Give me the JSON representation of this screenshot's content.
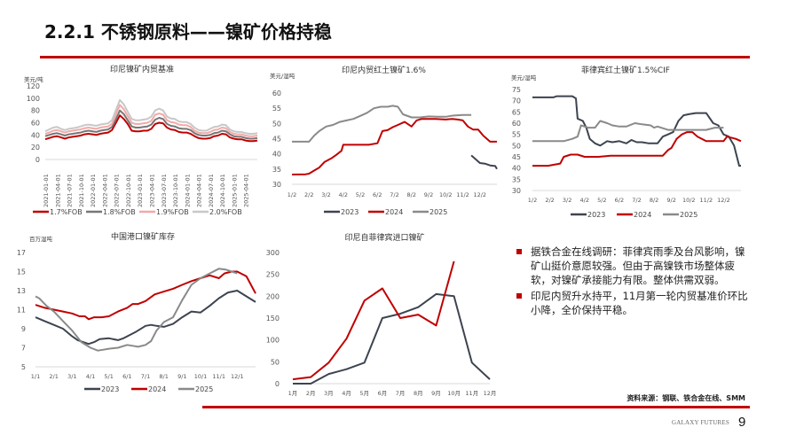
{
  "page": {
    "title": "2.2.1 不锈钢原料——镍矿价格持稳",
    "source": "资料来源：钢联、铁合金在线、SMM",
    "brand": "GALAXY FUTURES",
    "page_number": "9",
    "accent_color": "#c00000"
  },
  "bullets": [
    "据铁合金在线调研：菲律宾雨季及台风影响，镍矿山挺价意愿较强。但由于高镍铁市场整体疲软，对镍矿承接能力有限。整体供需双弱。",
    "印尼内贸升水持平，11月第一轮内贸基准价环比小降，全价保持平稳。"
  ],
  "chart_data": [
    {
      "id": "c1",
      "type": "line",
      "title": "印尼镍矿内贸基准",
      "ylabel": "美元/吨",
      "ylim": [
        0,
        120
      ],
      "yticks": [
        0,
        20,
        40,
        60,
        80,
        100,
        120
      ],
      "xticks": [
        "2021-01-01",
        "2021-04-01",
        "2021-07-01",
        "2021-10-01",
        "2022-01-01",
        "2022-04-01",
        "2022-07-01",
        "2022-10-01",
        "2023-01-01",
        "2023-04-01",
        "2023-07-01",
        "2023-10-01",
        "2024-01-01",
        "2024-04-01",
        "2024-07-01",
        "2024-10-01",
        "2025-01-01",
        "2025-04-01"
      ],
      "x": [
        0,
        1,
        2,
        3,
        4,
        5,
        6,
        7,
        8,
        9,
        10,
        11,
        12,
        13,
        14,
        15,
        16,
        17,
        18,
        19,
        20,
        21,
        22,
        23,
        24,
        25,
        26,
        27,
        28,
        29,
        30,
        31,
        32,
        33,
        34,
        35,
        36,
        37,
        38,
        39,
        40,
        41,
        42,
        43,
        44,
        45,
        46,
        47,
        48,
        49,
        50,
        51,
        52,
        53,
        54
      ],
      "xunit": "months since 2021-01",
      "series": [
        {
          "name": "1.7%FOB",
          "color": "#c00000",
          "values": [
            33,
            35,
            37,
            38,
            36,
            34,
            36,
            37,
            38,
            39,
            41,
            42,
            41,
            40,
            42,
            43,
            44,
            48,
            60,
            72,
            66,
            58,
            47,
            46,
            46,
            47,
            47,
            50,
            58,
            60,
            59,
            52,
            49,
            48,
            45,
            44,
            44,
            42,
            38,
            35,
            34,
            34,
            35,
            38,
            39,
            42,
            41,
            36,
            34,
            33,
            33,
            31,
            30,
            30,
            31
          ]
        },
        {
          "name": "1.8%FOB",
          "color": "#777777",
          "values": [
            38,
            40,
            42,
            43,
            41,
            39,
            41,
            42,
            43,
            44,
            46,
            47,
            46,
            45,
            47,
            48,
            49,
            53,
            66,
            80,
            74,
            64,
            54,
            52,
            52,
            53,
            54,
            57,
            65,
            68,
            66,
            58,
            55,
            54,
            51,
            50,
            50,
            48,
            43,
            40,
            39,
            39,
            40,
            43,
            44,
            47,
            46,
            41,
            38,
            37,
            37,
            35,
            34,
            34,
            35
          ]
        },
        {
          "name": "1.9%FOB",
          "color": "#f4a8a8",
          "values": [
            42,
            44,
            47,
            48,
            46,
            44,
            46,
            47,
            48,
            49,
            51,
            52,
            51,
            50,
            52,
            53,
            54,
            58,
            74,
            89,
            82,
            71,
            60,
            58,
            58,
            59,
            60,
            63,
            73,
            75,
            73,
            64,
            61,
            60,
            57,
            56,
            56,
            53,
            47,
            44,
            43,
            43,
            45,
            48,
            49,
            52,
            51,
            45,
            42,
            41,
            41,
            39,
            38,
            38,
            39
          ]
        },
        {
          "name": "2.0%FOB",
          "color": "#c8c8c8",
          "values": [
            46,
            49,
            52,
            53,
            50,
            48,
            50,
            51,
            52,
            54,
            56,
            57,
            56,
            55,
            57,
            58,
            59,
            64,
            81,
            97,
            90,
            78,
            66,
            64,
            64,
            65,
            66,
            70,
            80,
            83,
            80,
            70,
            67,
            66,
            62,
            61,
            61,
            58,
            52,
            48,
            47,
            47,
            50,
            53,
            54,
            57,
            56,
            49,
            46,
            45,
            45,
            43,
            42,
            42,
            43
          ]
        }
      ],
      "legend": "bottom"
    },
    {
      "id": "c2",
      "type": "line",
      "title": "印尼内贸红土镍矿1.6%",
      "ylabel": "美元/湿吨",
      "ylim": [
        30,
        60
      ],
      "yticks": [
        30,
        35,
        40,
        45,
        50,
        55,
        60
      ],
      "xticks": [
        "1/2",
        "2/2",
        "3/2",
        "4/2",
        "5/2",
        "6/2",
        "7/2",
        "8/2",
        "9/2",
        "10/2",
        "11/2",
        "12/2"
      ],
      "x_range": [
        0,
        12
      ],
      "series": [
        {
          "name": "2023",
          "color": "#3d4450",
          "x": [
            10.5,
            10.8,
            11.0,
            11.3,
            11.6,
            11.9,
            12.0
          ],
          "values": [
            39.5,
            38,
            37,
            36.8,
            36.2,
            36,
            35
          ]
        },
        {
          "name": "2024",
          "color": "#c00000",
          "x": [
            0,
            0.8,
            1.0,
            1.3,
            1.6,
            1.9,
            2.3,
            2.6,
            2.9,
            3.0,
            3.3,
            3.8,
            4.5,
            5.0,
            5.3,
            5.6,
            5.9,
            6.2,
            6.6,
            7.0,
            7.3,
            7.6,
            8.0,
            8.4,
            9.0,
            9.4,
            9.7,
            10.0,
            10.3,
            10.6,
            10.9,
            11.2,
            11.6,
            12.0
          ],
          "values": [
            33.2,
            33.3,
            33.5,
            34.5,
            35.5,
            37.3,
            38.5,
            39.7,
            41,
            43,
            43,
            43,
            43,
            43.5,
            47.5,
            47.8,
            48.8,
            49.5,
            50.5,
            49,
            51,
            51.5,
            51.5,
            51.5,
            51.3,
            51.5,
            51.3,
            51,
            49,
            48,
            48,
            46,
            44,
            44
          ]
        },
        {
          "name": "2025",
          "color": "#8a8a8a",
          "x": [
            0,
            1.0,
            1.3,
            1.6,
            2.0,
            2.4,
            2.8,
            3.2,
            3.6,
            4.0,
            4.4,
            4.8,
            5.2,
            5.6,
            5.9,
            6.2,
            6.5,
            7.0,
            7.5,
            8.0,
            8.5,
            9.0,
            9.3,
            9.5,
            10.0,
            10.5
          ],
          "values": [
            44,
            44,
            46,
            47.5,
            49,
            49.5,
            50.5,
            51,
            51.5,
            52.5,
            53.5,
            55,
            55.5,
            55.5,
            55.8,
            55.5,
            53,
            52,
            52,
            52.3,
            52.2,
            52.2,
            52.5,
            52.6,
            52.8,
            52.8
          ]
        }
      ],
      "legend": "bottom"
    },
    {
      "id": "c3",
      "type": "line",
      "title": "菲律宾红土镍矿1.5%CIF",
      "ylabel": "美元/湿吨",
      "ylim": [
        30,
        75
      ],
      "yticks": [
        30,
        35,
        40,
        45,
        50,
        55,
        60,
        65,
        70,
        75
      ],
      "xticks": [
        "1/2",
        "2/2",
        "3/2",
        "4/2",
        "5/2",
        "6/2",
        "7/2",
        "8/2",
        "9/2",
        "10/2",
        "11/2",
        "12/2"
      ],
      "x_range": [
        0,
        12
      ],
      "series": [
        {
          "name": "2023",
          "color": "#3d4450",
          "x": [
            0,
            1.2,
            1.4,
            2.3,
            2.5,
            2.6,
            2.9,
            3.1,
            3.3,
            3.6,
            3.9,
            4.3,
            4.6,
            5.0,
            5.4,
            5.7,
            6.0,
            6.3,
            6.7,
            7.2,
            7.5,
            7.8,
            8.1,
            8.4,
            8.7,
            9.0,
            9.4,
            10.0,
            10.4,
            10.7,
            11.0,
            11.3,
            11.6,
            11.9,
            12.0
          ],
          "values": [
            71.5,
            71.5,
            72,
            72,
            71,
            62,
            61,
            58,
            53,
            51,
            50,
            52,
            51.5,
            52,
            51,
            52.5,
            51.5,
            51.5,
            51,
            51,
            54,
            55,
            56,
            61,
            63.5,
            64,
            64.5,
            64.5,
            60,
            59,
            55,
            54,
            50,
            41,
            41
          ]
        },
        {
          "name": "2024",
          "color": "#c00000",
          "x": [
            0,
            0.9,
            1.6,
            1.8,
            2.2,
            2.6,
            3.0,
            3.8,
            4.5,
            5.0,
            6.0,
            7.0,
            7.5,
            7.8,
            8.0,
            8.3,
            8.6,
            8.9,
            9.2,
            9.5,
            10.0,
            10.5,
            11.0,
            11.2,
            11.7,
            12.0
          ],
          "values": [
            41,
            41,
            42,
            45,
            46,
            46,
            45,
            45,
            45.5,
            45.5,
            45.5,
            45.5,
            45.5,
            48,
            49,
            53,
            55,
            56,
            56,
            54,
            52,
            52,
            52,
            54,
            53,
            52
          ]
        },
        {
          "name": "2025",
          "color": "#8a8a8a",
          "x": [
            0,
            1.5,
            1.8,
            2.3,
            2.6,
            2.8,
            3.2,
            3.6,
            3.9,
            4.3,
            4.6,
            5.0,
            5.4,
            5.9,
            6.3,
            6.8,
            7.0,
            7.2,
            7.4,
            7.8,
            8.0,
            8.5,
            9.0,
            10.0,
            10.5,
            11.0
          ],
          "values": [
            52,
            52,
            52,
            53,
            54,
            59,
            58,
            58,
            61,
            60,
            59,
            58.5,
            58.5,
            60,
            59.5,
            59,
            58,
            58.5,
            58,
            57,
            57,
            57,
            57,
            57,
            58,
            58
          ]
        }
      ],
      "legend": "bottom"
    },
    {
      "id": "c4",
      "type": "line",
      "title": "中国港口镍矿库存",
      "ylabel": "百万湿吨",
      "ylim": [
        5,
        17
      ],
      "yticks": [
        5,
        7,
        9,
        11,
        13,
        15,
        17
      ],
      "xticks": [
        "1/1",
        "2/1",
        "3/1",
        "4/1",
        "5/1",
        "6/1",
        "7/1",
        "8/1",
        "9/1",
        "10/1",
        "11/1",
        "12/1"
      ],
      "x_range": [
        0,
        12
      ],
      "series": [
        {
          "name": "2023",
          "color": "#3d4450",
          "x": [
            0,
            0.5,
            1.0,
            1.5,
            2.0,
            2.3,
            2.6,
            2.9,
            3.2,
            3.5,
            4.0,
            4.5,
            4.8,
            5.0,
            5.5,
            6.0,
            6.3,
            6.6,
            7.0,
            7.5,
            8.0,
            8.5,
            9.0,
            9.5,
            10.0,
            10.5,
            11.0,
            11.5,
            12.0
          ],
          "values": [
            10.2,
            9.8,
            9.4,
            9.0,
            8.2,
            7.8,
            7.6,
            7.4,
            7.6,
            7.9,
            8.0,
            7.8,
            8.0,
            8.2,
            8.7,
            9.3,
            9.4,
            9.3,
            9.2,
            9.5,
            10.2,
            10.8,
            10.7,
            11.4,
            12.2,
            12.8,
            13.0,
            12.4,
            11.8
          ]
        },
        {
          "name": "2024",
          "color": "#c00000",
          "x": [
            0,
            0.5,
            1.0,
            1.5,
            2.0,
            2.4,
            2.7,
            2.9,
            3.2,
            3.6,
            4.0,
            4.5,
            5.0,
            5.3,
            5.6,
            6.0,
            6.5,
            7.0,
            7.5,
            8.0,
            8.5,
            9.0,
            9.5,
            10.0,
            10.3,
            10.7,
            11.0,
            11.5,
            12.0
          ],
          "values": [
            11.5,
            11.2,
            11.0,
            10.8,
            10.6,
            10.3,
            10.3,
            10.0,
            10.2,
            10.2,
            10.3,
            10.8,
            11.2,
            11.6,
            11.6,
            11.9,
            12.6,
            12.9,
            13.2,
            13.6,
            14.0,
            14.3,
            14.6,
            14.3,
            14.8,
            15.0,
            15.0,
            14.5,
            12.7
          ]
        },
        {
          "name": "2025",
          "color": "#8a8a8a",
          "x": [
            0,
            0.2,
            0.6,
            1.0,
            1.5,
            2.0,
            2.5,
            3.0,
            3.4,
            3.7,
            4.0,
            4.5,
            5.0,
            5.3,
            5.6,
            6.0,
            6.3,
            6.6,
            7.0,
            7.5,
            8.0,
            8.5,
            9.0,
            9.5,
            10.0,
            10.4,
            10.7,
            11.0
          ],
          "values": [
            12.4,
            12.2,
            11.4,
            10.8,
            9.8,
            8.8,
            7.6,
            7.0,
            6.7,
            6.8,
            6.9,
            7.0,
            7.3,
            7.2,
            7.1,
            7.3,
            7.7,
            8.8,
            9.7,
            10.2,
            12.0,
            13.6,
            14.3,
            14.8,
            15.3,
            15.2,
            15.0,
            14.8
          ]
        }
      ],
      "legend": "bottom"
    },
    {
      "id": "c5",
      "type": "line",
      "title": "印尼自菲律宾进口镍矿",
      "ylabel": "",
      "ylim": [
        0,
        300
      ],
      "yticks": [
        0,
        50,
        100,
        150,
        200,
        250,
        300
      ],
      "xticks": [
        "1月",
        "2月",
        "3月",
        "4月",
        "5月",
        "6月",
        "7月",
        "8月",
        "9月",
        "10月",
        "11月",
        "12月"
      ],
      "x_range": [
        0,
        11
      ],
      "series": [
        {
          "name": "dark",
          "color": "#3d4450",
          "x": [
            0,
            1,
            2,
            3,
            4,
            5,
            6,
            7,
            8,
            9,
            10,
            11
          ],
          "values": [
            0,
            0,
            22,
            33,
            48,
            150,
            160,
            175,
            205,
            200,
            48,
            10
          ]
        },
        {
          "name": "red",
          "color": "#c00000",
          "x": [
            0,
            1,
            2,
            3,
            4,
            5,
            6,
            7,
            8,
            9
          ],
          "values": [
            10,
            15,
            48,
            103,
            190,
            218,
            150,
            158,
            133,
            280
          ]
        }
      ],
      "legend": "none"
    }
  ]
}
